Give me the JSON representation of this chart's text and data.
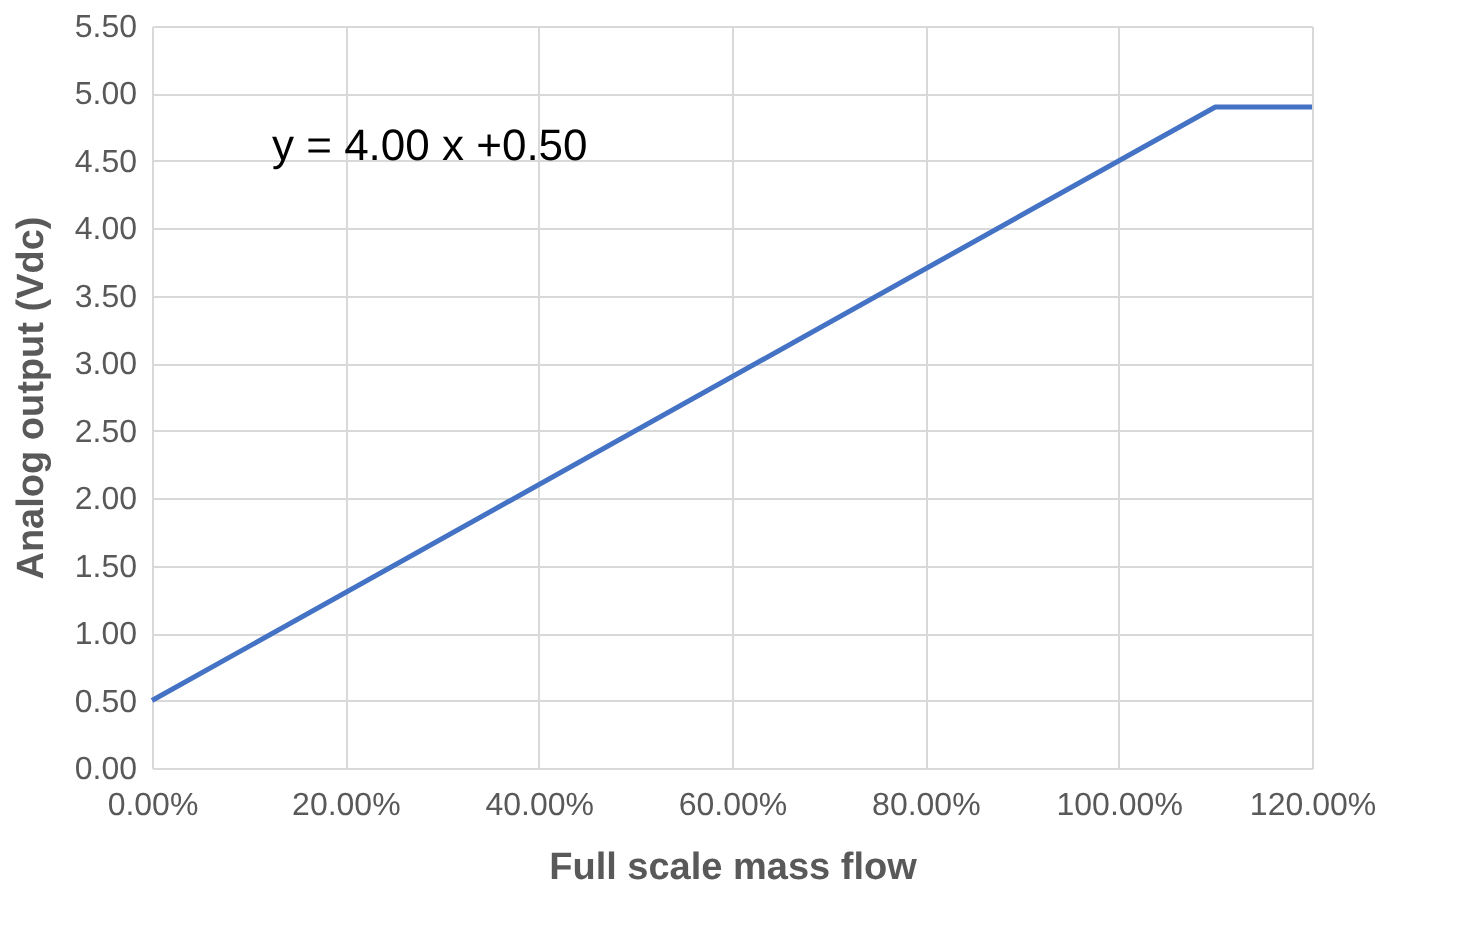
{
  "chart_data": {
    "type": "line",
    "xlabel": "Full scale mass flow",
    "ylabel": "Analog output (Vdc)",
    "x": [
      0,
      110,
      120
    ],
    "series": [
      {
        "color": "#4472c4",
        "values": [
          0.5,
          4.9,
          4.9
        ]
      }
    ],
    "xlim": [
      0,
      120
    ],
    "xticks": [
      {
        "value": 0,
        "label": "0.00%"
      },
      {
        "value": 20,
        "label": "20.00%"
      },
      {
        "value": 40,
        "label": "40.00%"
      },
      {
        "value": 60,
        "label": "60.00%"
      },
      {
        "value": 80,
        "label": "80.00%"
      },
      {
        "value": 100,
        "label": "100.00%"
      },
      {
        "value": 120,
        "label": "120.00%"
      }
    ],
    "ylim": [
      0,
      5.5
    ],
    "yticks": [
      {
        "value": 0,
        "label": "0.00"
      },
      {
        "value": 0.5,
        "label": "0.50"
      },
      {
        "value": 1,
        "label": "1.00"
      },
      {
        "value": 1.5,
        "label": "1.50"
      },
      {
        "value": 2,
        "label": "2.00"
      },
      {
        "value": 2.5,
        "label": "2.50"
      },
      {
        "value": 3,
        "label": "3.00"
      },
      {
        "value": 3.5,
        "label": "3.50"
      },
      {
        "value": 4,
        "label": "4.00"
      },
      {
        "value": 4.5,
        "label": "4.50"
      },
      {
        "value": 5,
        "label": "5.00"
      },
      {
        "value": 5.5,
        "label": "5.50"
      }
    ],
    "grid": true,
    "marker": "none",
    "line_style": "solid",
    "annotations": [
      "y = 4.00 x +0.50"
    ]
  }
}
